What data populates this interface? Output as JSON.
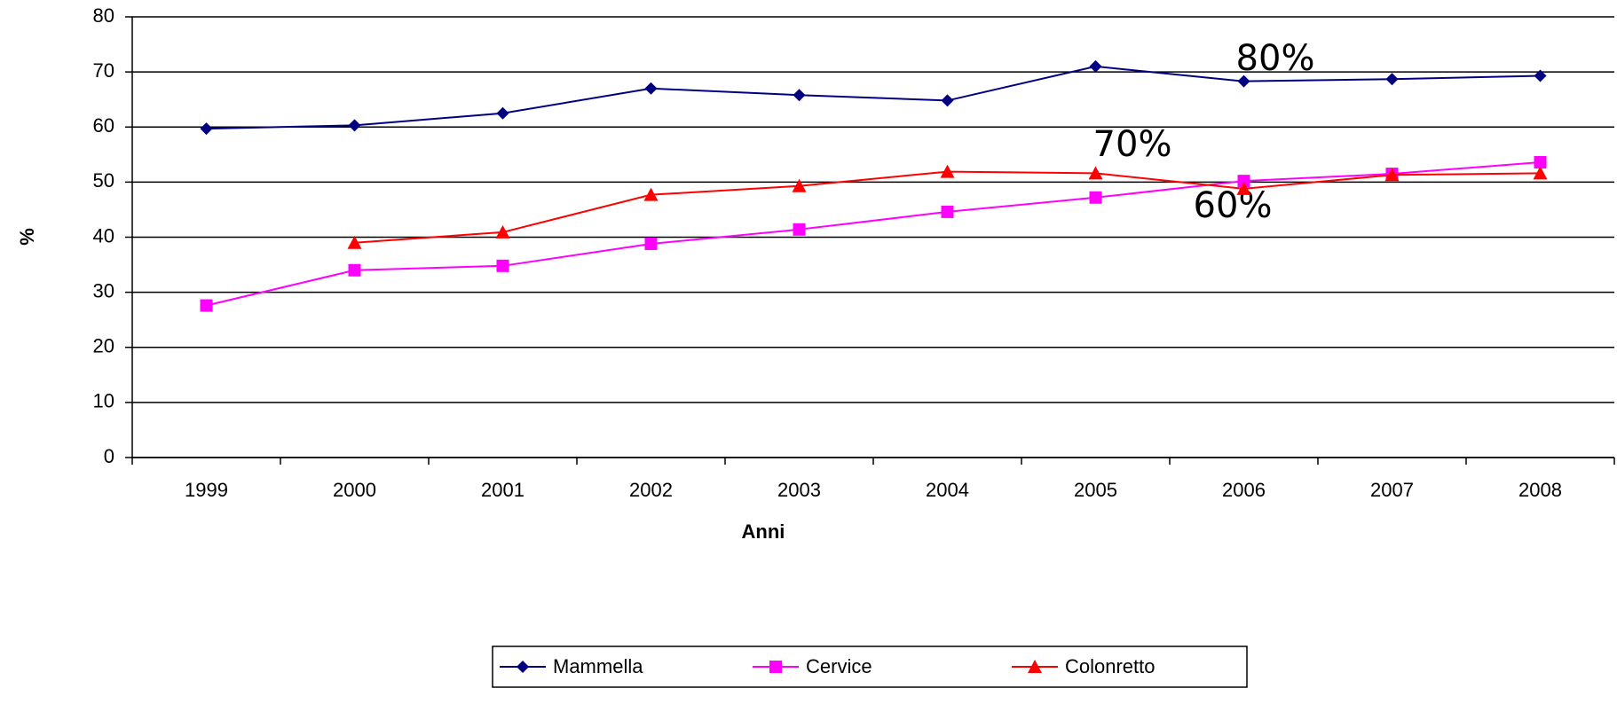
{
  "chart_data": {
    "type": "line",
    "x_label": "Anni",
    "y_label": "%",
    "categories": [
      "1999",
      "2000",
      "2001",
      "2002",
      "2003",
      "2004",
      "2005",
      "2006",
      "2007",
      "2008"
    ],
    "series": [
      {
        "name": "Mammella",
        "color": "#000080",
        "marker": "diamond",
        "values": [
          59.7,
          60.3,
          62.5,
          67,
          65.8,
          64.8,
          71,
          68.3,
          68.7,
          69.3
        ]
      },
      {
        "name": "Cervice",
        "color": "#ff00ff",
        "marker": "square",
        "values": [
          27.6,
          34,
          34.8,
          38.8,
          41.4,
          44.6,
          47.2,
          50.2,
          51.5,
          53.6
        ]
      },
      {
        "name": "Colonretto",
        "color": "#ff0000",
        "marker": "triangle",
        "values": [
          null,
          39,
          40.9,
          47.7,
          49.3,
          51.9,
          51.6,
          48.8,
          51.3,
          51.6
        ]
      }
    ],
    "ylim": [
      0,
      80
    ],
    "yticks": [
      0,
      10,
      20,
      30,
      40,
      50,
      60,
      70,
      80
    ],
    "grid": true,
    "annotations": [
      "80%",
      "70%",
      "60%"
    ]
  }
}
